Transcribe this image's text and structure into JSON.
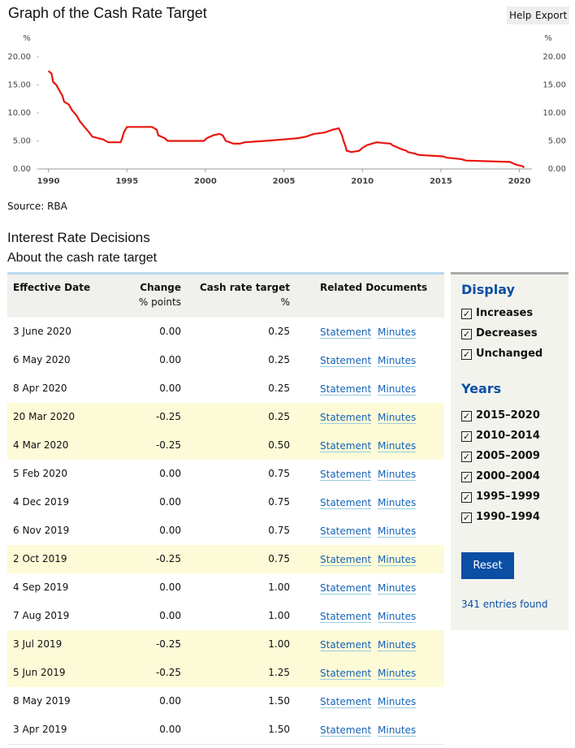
{
  "header": {
    "title": "Graph of the Cash Rate Target",
    "buttons": [
      "Help",
      "Export"
    ]
  },
  "chart_data": {
    "type": "line",
    "ylabel": "%",
    "color": "#e8150f",
    "x": [
      1990.0,
      1990.2,
      1990.3,
      1990.5,
      1990.7,
      1990.9,
      1991.0,
      1991.3,
      1991.5,
      1991.8,
      1992.0,
      1992.3,
      1992.6,
      1992.8,
      1993.5,
      1993.8,
      1994.6,
      1994.7,
      1994.8,
      1995.0,
      1996.6,
      1996.9,
      1997.0,
      1997.4,
      1997.6,
      1998.9,
      1999.9,
      2000.1,
      2000.5,
      2000.9,
      2001.1,
      2001.3,
      2001.8,
      2002.2,
      2002.5,
      2003.8,
      2004.9,
      2005.9,
      2006.4,
      2006.9,
      2007.6,
      2008.1,
      2008.5,
      2008.7,
      2008.8,
      2008.9,
      2009.0,
      2009.3,
      2009.8,
      2010.0,
      2010.3,
      2010.6,
      2010.9,
      2011.8,
      2011.9,
      2012.3,
      2012.5,
      2012.8,
      2012.9,
      2013.3,
      2013.6,
      2015.1,
      2015.4,
      2016.3,
      2016.6,
      2019.4,
      2019.6,
      2019.8,
      2020.2,
      2020.3
    ],
    "values": [
      17.5,
      17,
      15.5,
      15,
      14,
      13,
      12,
      11.5,
      10.5,
      9.5,
      8.5,
      7.5,
      6.5,
      5.75,
      5.25,
      4.75,
      4.75,
      5.5,
      6.5,
      7.5,
      7.5,
      7,
      6,
      5.5,
      5,
      5,
      5,
      5.5,
      6,
      6.25,
      6,
      5,
      4.5,
      4.5,
      4.75,
      5,
      5.25,
      5.5,
      5.75,
      6.25,
      6.5,
      7,
      7.25,
      6,
      5,
      4.25,
      3.25,
      3,
      3.25,
      3.75,
      4.25,
      4.5,
      4.75,
      4.5,
      4.25,
      3.75,
      3.5,
      3.25,
      3,
      2.75,
      2.5,
      2.25,
      2,
      1.75,
      1.5,
      1.25,
      1,
      0.75,
      0.5,
      0.25
    ],
    "xlim": [
      1989.4,
      2020.8
    ],
    "xticks": [
      1990,
      1995,
      2000,
      2005,
      2010,
      2015,
      2020
    ],
    "ylim": [
      0,
      20
    ],
    "yticks": [
      {
        "value": 0,
        "label": "0.00"
      },
      {
        "value": 5,
        "label": "5.00"
      },
      {
        "value": 10,
        "label": "10.00"
      },
      {
        "value": 15,
        "label": "15.00"
      },
      {
        "value": 20,
        "label": "20.00"
      }
    ],
    "source": "Source: RBA"
  },
  "section": {
    "title": "Interest Rate Decisions",
    "subtitle": "About the cash rate target"
  },
  "table": {
    "header": [
      [
        "Effective Date"
      ],
      [
        "Change",
        "% points"
      ],
      [
        "Cash rate target",
        "%"
      ],
      [
        "Related Documents"
      ]
    ],
    "rows": [
      [
        "3 June 2020",
        "0.00",
        "0.25",
        "Statement",
        "Minutes"
      ],
      [
        "6 May 2020",
        "0.00",
        "0.25",
        "Statement",
        "Minutes"
      ],
      [
        "8 Apr 2020",
        "0.00",
        "0.25",
        "Statement",
        "Minutes"
      ],
      [
        "20 Mar 2020",
        "-0.25",
        "0.25",
        "Statement",
        "Minutes"
      ],
      [
        "4 Mar 2020",
        "-0.25",
        "0.50",
        "Statement",
        "Minutes"
      ],
      [
        "5 Feb 2020",
        "0.00",
        "0.75",
        "Statement",
        "Minutes"
      ],
      [
        "4 Dec 2019",
        "0.00",
        "0.75",
        "Statement",
        "Minutes"
      ],
      [
        "6 Nov 2019",
        "0.00",
        "0.75",
        "Statement",
        "Minutes"
      ],
      [
        "2 Oct 2019",
        "-0.25",
        "0.75",
        "Statement",
        "Minutes"
      ],
      [
        "4 Sep 2019",
        "0.00",
        "1.00",
        "Statement",
        "Minutes"
      ],
      [
        "7 Aug 2019",
        "0.00",
        "1.00",
        "Statement",
        "Minutes"
      ],
      [
        "3 Jul 2019",
        "-0.25",
        "1.00",
        "Statement",
        "Minutes"
      ],
      [
        "5 Jun 2019",
        "-0.25",
        "1.25",
        "Statement",
        "Minutes"
      ],
      [
        "8 May 2019",
        "0.00",
        "1.50",
        "Statement",
        "Minutes"
      ],
      [
        "3 Apr 2019",
        "0.00",
        "1.50",
        "Statement",
        "Minutes"
      ]
    ]
  },
  "sidebar": {
    "display_title": "Display",
    "display": [
      "Increases",
      "Decreases",
      "Unchanged"
    ],
    "years_title": "Years",
    "years": [
      "2015–2020",
      "2010–2014",
      "2005–2009",
      "2000–2004",
      "1995–1999",
      "1990–1994"
    ],
    "reset": "Reset",
    "count": "341 entries found"
  }
}
